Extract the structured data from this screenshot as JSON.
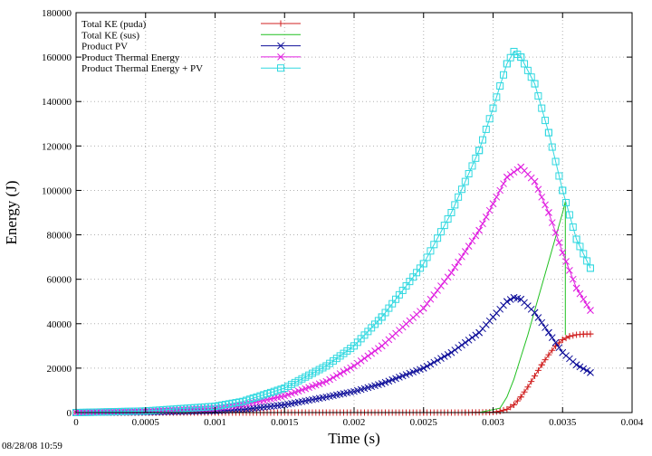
{
  "chart_data": {
    "type": "line",
    "xlabel": "Time (s)",
    "ylabel": "Energy (J)",
    "xlim": [
      0,
      0.004
    ],
    "ylim": [
      0,
      180000
    ],
    "xticks": [
      0,
      0.0005,
      0.001,
      0.0015,
      0.002,
      0.0025,
      0.003,
      0.0035,
      0.004
    ],
    "xtick_labels": [
      "0",
      "0.0005",
      "0.001",
      "0.0015",
      "0.002",
      "0.0025",
      "0.003",
      "0.0035",
      "0.004"
    ],
    "yticks": [
      0,
      20000,
      40000,
      60000,
      80000,
      100000,
      120000,
      140000,
      160000,
      180000
    ],
    "ytick_labels": [
      "0",
      "20000",
      "40000",
      "60000",
      "80000",
      "100000",
      "120000",
      "140000",
      "160000",
      "180000"
    ],
    "grid": true,
    "legend_position": "top-left",
    "series": [
      {
        "name": "Total KE (puda)",
        "color": "#d02020",
        "marker": "plus",
        "points": [
          [
            0,
            0
          ],
          [
            0.0005,
            0
          ],
          [
            0.001,
            0
          ],
          [
            0.0015,
            0
          ],
          [
            0.002,
            0
          ],
          [
            0.0025,
            0
          ],
          [
            0.0028,
            0
          ],
          [
            0.003,
            200
          ],
          [
            0.00305,
            600
          ],
          [
            0.0031,
            1500
          ],
          [
            0.00315,
            3500
          ],
          [
            0.0032,
            7000
          ],
          [
            0.00325,
            11500
          ],
          [
            0.0033,
            16500
          ],
          [
            0.00335,
            21500
          ],
          [
            0.0034,
            26000
          ],
          [
            0.00345,
            30000
          ],
          [
            0.0035,
            32800
          ],
          [
            0.00355,
            34300
          ],
          [
            0.0036,
            35000
          ],
          [
            0.00365,
            35300
          ],
          [
            0.0037,
            35400
          ]
        ]
      },
      {
        "name": "Total KE (sus)",
        "color": "#20c020",
        "marker": "none",
        "points": [
          [
            0,
            0
          ],
          [
            0.001,
            0
          ],
          [
            0.002,
            0
          ],
          [
            0.0029,
            0
          ],
          [
            0.00305,
            2000
          ],
          [
            0.0031,
            7000
          ],
          [
            0.00315,
            15000
          ],
          [
            0.0032,
            25000
          ],
          [
            0.00325,
            35000
          ],
          [
            0.0033,
            46000
          ],
          [
            0.00335,
            57000
          ],
          [
            0.0034,
            68000
          ],
          [
            0.00345,
            79000
          ],
          [
            0.0035,
            90000
          ],
          [
            0.00352,
            95000
          ],
          [
            0.00352,
            35000
          ]
        ]
      },
      {
        "name": "Product PV",
        "color": "#10109a",
        "marker": "x",
        "points": [
          [
            0,
            0
          ],
          [
            0.0005,
            200
          ],
          [
            0.001,
            800
          ],
          [
            0.0012,
            1400
          ],
          [
            0.0015,
            3500
          ],
          [
            0.0018,
            7000
          ],
          [
            0.002,
            9500
          ],
          [
            0.0022,
            13000
          ],
          [
            0.0025,
            20000
          ],
          [
            0.0027,
            27000
          ],
          [
            0.0029,
            36000
          ],
          [
            0.003,
            43000
          ],
          [
            0.0031,
            50000
          ],
          [
            0.00315,
            51800
          ],
          [
            0.0032,
            51000
          ],
          [
            0.0033,
            45000
          ],
          [
            0.0034,
            36000
          ],
          [
            0.0035,
            27000
          ],
          [
            0.0036,
            21500
          ],
          [
            0.0037,
            18000
          ]
        ]
      },
      {
        "name": "Product Thermal Energy",
        "color": "#e020e0",
        "marker": "x",
        "points": [
          [
            0,
            0
          ],
          [
            0.0005,
            500
          ],
          [
            0.001,
            2000
          ],
          [
            0.0012,
            3500
          ],
          [
            0.0015,
            7500
          ],
          [
            0.0018,
            14000
          ],
          [
            0.002,
            21000
          ],
          [
            0.0022,
            30000
          ],
          [
            0.0025,
            47000
          ],
          [
            0.0027,
            63000
          ],
          [
            0.0029,
            82000
          ],
          [
            0.003,
            94000
          ],
          [
            0.0031,
            106000
          ],
          [
            0.0032,
            110500
          ],
          [
            0.0033,
            104000
          ],
          [
            0.0034,
            90000
          ],
          [
            0.0035,
            72000
          ],
          [
            0.0036,
            56000
          ],
          [
            0.0037,
            46000
          ]
        ]
      },
      {
        "name": "Product Thermal Energy + PV",
        "color": "#30d8e0",
        "marker": "square",
        "points": [
          [
            0,
            0
          ],
          [
            0.0005,
            700
          ],
          [
            0.001,
            2800
          ],
          [
            0.0012,
            5000
          ],
          [
            0.0015,
            11000
          ],
          [
            0.0018,
            21000
          ],
          [
            0.002,
            30000
          ],
          [
            0.0022,
            43000
          ],
          [
            0.0025,
            67000
          ],
          [
            0.0027,
            90000
          ],
          [
            0.0029,
            118000
          ],
          [
            0.003,
            137000
          ],
          [
            0.0031,
            157000
          ],
          [
            0.00315,
            162500
          ],
          [
            0.0032,
            160000
          ],
          [
            0.0033,
            148000
          ],
          [
            0.0034,
            126000
          ],
          [
            0.0035,
            100000
          ],
          [
            0.0036,
            78000
          ],
          [
            0.0037,
            65000
          ]
        ]
      }
    ]
  },
  "timestamp": "08/28/08 10:59"
}
